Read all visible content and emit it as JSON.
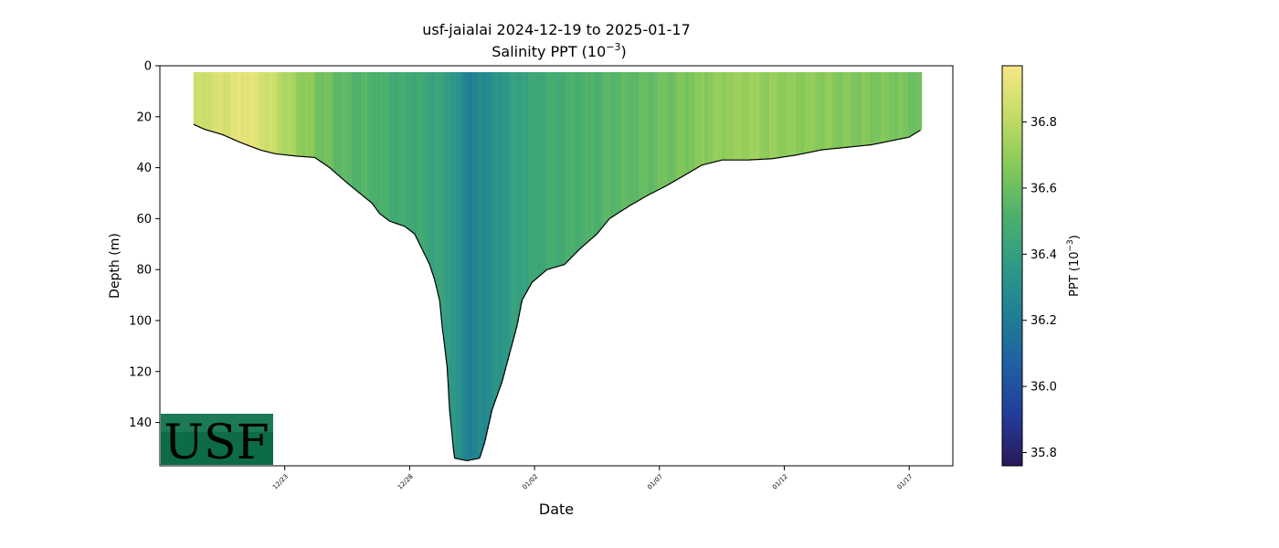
{
  "chart_data": {
    "type": "heatmap",
    "title": "usf-jaialai 2024-12-19 to 2025-01-17",
    "subtitle_prefix": "Salinity PPT (10",
    "subtitle_exp": "−3",
    "subtitle_suffix": ")",
    "xlabel": "Date",
    "ylabel": "Depth (m)",
    "colorbar_label_prefix": "PPT (10",
    "colorbar_label_exp": "−3",
    "colorbar_label_suffix": ")",
    "x_range_days": [
      0,
      31.75
    ],
    "x_ticks": [
      {
        "day": 5.0,
        "label": "12/23"
      },
      {
        "day": 10.0,
        "label": "12/28"
      },
      {
        "day": 15.0,
        "label": "01/02"
      },
      {
        "day": 20.0,
        "label": "01/07"
      },
      {
        "day": 25.0,
        "label": "01/12"
      },
      {
        "day": 30.0,
        "label": "01/17"
      }
    ],
    "y_range": [
      157,
      0
    ],
    "y_ticks": [
      0,
      20,
      40,
      60,
      80,
      100,
      120,
      140
    ],
    "colorbar_range": [
      35.76,
      36.97
    ],
    "colorbar_ticks": [
      35.8,
      36.0,
      36.2,
      36.4,
      36.6,
      36.8
    ],
    "colormap": [
      "#2a1859",
      "#233c99",
      "#1f5fa3",
      "#1f7e94",
      "#2f9a87",
      "#4cb06c",
      "#86c95a",
      "#c4dc66",
      "#f6e885"
    ],
    "deployment_start_day": 1.35,
    "deployment_end_day": 30.5,
    "max_depth_profile": [
      [
        1.35,
        23
      ],
      [
        1.8,
        25
      ],
      [
        2.5,
        27
      ],
      [
        3.2,
        30
      ],
      [
        4.0,
        33
      ],
      [
        4.6,
        34.5
      ],
      [
        5.5,
        35.5
      ],
      [
        6.2,
        36
      ],
      [
        6.8,
        40
      ],
      [
        7.5,
        46
      ],
      [
        8.0,
        50
      ],
      [
        8.5,
        54
      ],
      [
        8.8,
        58
      ],
      [
        9.2,
        61
      ],
      [
        9.8,
        63
      ],
      [
        10.2,
        66
      ],
      [
        10.5,
        72
      ],
      [
        10.8,
        78
      ],
      [
        11.0,
        84
      ],
      [
        11.2,
        92
      ],
      [
        11.3,
        102
      ],
      [
        11.5,
        118
      ],
      [
        11.6,
        135
      ],
      [
        11.75,
        150
      ],
      [
        11.8,
        154
      ],
      [
        12.3,
        155
      ],
      [
        12.8,
        154
      ],
      [
        13.0,
        148
      ],
      [
        13.3,
        135
      ],
      [
        13.7,
        124
      ],
      [
        14.0,
        113
      ],
      [
        14.3,
        102
      ],
      [
        14.5,
        92
      ],
      [
        14.9,
        85
      ],
      [
        15.5,
        80
      ],
      [
        16.2,
        78
      ],
      [
        16.8,
        72
      ],
      [
        17.5,
        66
      ],
      [
        18.0,
        60
      ],
      [
        18.8,
        55
      ],
      [
        19.5,
        51
      ],
      [
        20.3,
        47
      ],
      [
        21.0,
        43
      ],
      [
        21.7,
        39
      ],
      [
        22.5,
        37
      ],
      [
        23.5,
        37
      ],
      [
        24.5,
        36.5
      ],
      [
        25.5,
        35
      ],
      [
        26.5,
        33
      ],
      [
        27.5,
        32
      ],
      [
        28.5,
        31
      ],
      [
        29.5,
        29
      ],
      [
        30.0,
        28
      ],
      [
        30.5,
        25
      ]
    ],
    "surface_salinity_profile": [
      [
        1.35,
        36.82
      ],
      [
        2.5,
        36.88
      ],
      [
        3.5,
        36.92
      ],
      [
        4.5,
        36.85
      ],
      [
        5.5,
        36.72
      ],
      [
        6.5,
        36.62
      ],
      [
        7.5,
        36.55
      ],
      [
        8.5,
        36.52
      ],
      [
        9.5,
        36.48
      ],
      [
        10.5,
        36.45
      ],
      [
        11.5,
        36.4
      ],
      [
        12.0,
        36.3
      ],
      [
        12.5,
        36.22
      ],
      [
        13.0,
        36.28
      ],
      [
        13.5,
        36.33
      ],
      [
        14.5,
        36.42
      ],
      [
        15.5,
        36.47
      ],
      [
        16.5,
        36.5
      ],
      [
        17.5,
        36.52
      ],
      [
        18.5,
        36.56
      ],
      [
        19.5,
        36.58
      ],
      [
        20.5,
        36.62
      ],
      [
        21.5,
        36.66
      ],
      [
        22.5,
        36.7
      ],
      [
        23.5,
        36.72
      ],
      [
        24.5,
        36.7
      ],
      [
        25.5,
        36.68
      ],
      [
        26.5,
        36.68
      ],
      [
        27.5,
        36.66
      ],
      [
        28.5,
        36.65
      ],
      [
        29.5,
        36.64
      ],
      [
        30.5,
        36.6
      ]
    ]
  },
  "logo": {
    "text": "USF",
    "bg": "#0d6b47",
    "fg": "#f3eebb"
  }
}
